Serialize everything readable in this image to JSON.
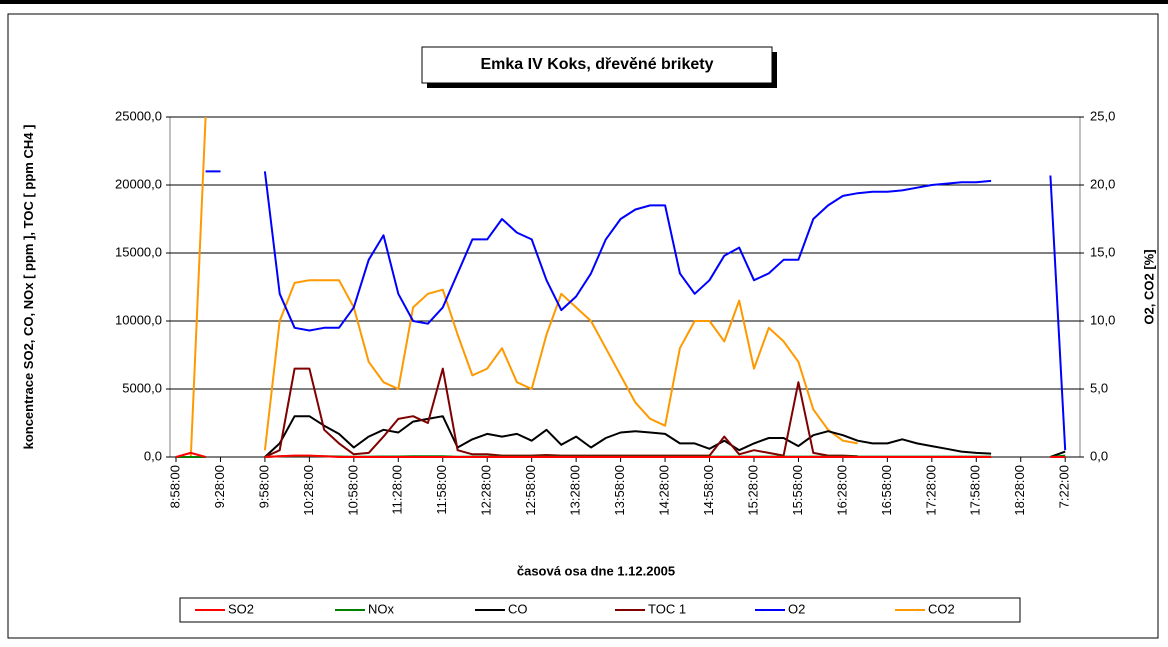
{
  "chart_data": {
    "type": "line",
    "title": "Emka IV Koks, dřevěné brikety",
    "x_label": "časová osa dne 1.12.2005",
    "y_label": "koncentrace SO2, CO, NOx [ ppm ], TOC [ ppm CH4 ]",
    "y2_label": "O2, CO2 [%]",
    "categories": [
      "8:58:00",
      null,
      null,
      "9:28:00",
      null,
      null,
      "9:58:00",
      null,
      null,
      "10:28:00",
      null,
      null,
      "10:58:00",
      null,
      null,
      "11:28:00",
      null,
      null,
      "11:58:00",
      null,
      null,
      "12:28:00",
      null,
      null,
      "12:58:00",
      null,
      null,
      "13:28:00",
      null,
      null,
      "13:58:00",
      null,
      null,
      "14:28:00",
      null,
      null,
      "14:58:00",
      null,
      null,
      "15:28:00",
      null,
      null,
      "15:58:00",
      null,
      null,
      "16:28:00",
      null,
      null,
      "16:58:00",
      null,
      null,
      "17:28:00",
      null,
      null,
      "17:58:00",
      null,
      null,
      "18:28:00",
      null,
      null,
      "7:22:00"
    ],
    "ylim": [
      0,
      25000
    ],
    "yticks": [
      {
        "value": 0,
        "label": "0,0"
      },
      {
        "value": 5000,
        "label": "5000,0"
      },
      {
        "value": 10000,
        "label": "10000,0"
      },
      {
        "value": 15000,
        "label": "15000,0"
      },
      {
        "value": 20000,
        "label": "20000,0"
      },
      {
        "value": 25000,
        "label": "25000,0"
      }
    ],
    "y2lim": [
      0,
      25
    ],
    "y2ticks": [
      {
        "value": 0,
        "label": "0,0"
      },
      {
        "value": 5,
        "label": "5,0"
      },
      {
        "value": 10,
        "label": "10,0"
      },
      {
        "value": 15,
        "label": "15,0"
      },
      {
        "value": 20,
        "label": "20,0"
      },
      {
        "value": 25,
        "label": "25,0"
      }
    ],
    "grid": true,
    "legend": "bottom",
    "series": [
      {
        "name": "SO2",
        "color": "#ff0000",
        "values": [
          0,
          300,
          0,
          null,
          null,
          null,
          0,
          50,
          100,
          100,
          50,
          0,
          0,
          0,
          0,
          0,
          0,
          0,
          0,
          0,
          0,
          0,
          0,
          0,
          0,
          0,
          0,
          0,
          0,
          0,
          0,
          0,
          0,
          0,
          0,
          0,
          0,
          0,
          0,
          0,
          0,
          0,
          0,
          0,
          0,
          0,
          0,
          0,
          0,
          0,
          0,
          0,
          0,
          0,
          0,
          0,
          null,
          null,
          null,
          0,
          0
        ]
      },
      {
        "name": "NOx",
        "color": "#008000",
        "values": [
          0,
          0,
          0,
          null,
          null,
          null,
          0,
          50,
          80,
          80,
          60,
          40,
          20,
          30,
          40,
          40,
          50,
          50,
          50,
          20,
          30,
          30,
          30,
          30,
          30,
          30,
          30,
          30,
          30,
          30,
          30,
          30,
          30,
          30,
          30,
          30,
          30,
          30,
          30,
          30,
          30,
          30,
          30,
          30,
          30,
          30,
          30,
          30,
          30,
          30,
          30,
          30,
          30,
          30,
          30,
          30,
          null,
          null,
          null,
          0,
          100
        ]
      },
      {
        "name": "CO",
        "color": "#000000",
        "values": [
          0,
          0,
          0,
          null,
          null,
          null,
          0,
          1000,
          3000,
          3000,
          2300,
          1700,
          700,
          1500,
          2000,
          1800,
          2600,
          2800,
          3000,
          700,
          1300,
          1700,
          1500,
          1700,
          1200,
          2000,
          900,
          1500,
          700,
          1400,
          1800,
          1900,
          1800,
          1700,
          1000,
          1000,
          600,
          1200,
          500,
          1000,
          1400,
          1400,
          800,
          1600,
          1900,
          1600,
          1200,
          1000,
          1000,
          1300,
          1000,
          800,
          600,
          400,
          300,
          250,
          null,
          null,
          null,
          0,
          400
        ]
      },
      {
        "name": "TOC 1",
        "color": "#800000",
        "values": [
          0,
          0,
          0,
          null,
          null,
          null,
          0,
          500,
          6500,
          6500,
          2000,
          1000,
          200,
          300,
          1500,
          2800,
          3000,
          2500,
          6500,
          500,
          200,
          200,
          100,
          100,
          100,
          150,
          100,
          100,
          100,
          100,
          100,
          100,
          100,
          100,
          100,
          100,
          100,
          1500,
          200,
          500,
          300,
          100,
          5500,
          300,
          100,
          100,
          50,
          null,
          null,
          null,
          null,
          null,
          null,
          null,
          null,
          null,
          null,
          null,
          null,
          null,
          null
        ]
      },
      {
        "name": "O2",
        "color": "#0000ff",
        "axis": "y2",
        "values": [
          null,
          null,
          21,
          21,
          null,
          null,
          21,
          12,
          9.5,
          9.3,
          9.5,
          9.5,
          11,
          14.5,
          16.3,
          12,
          10,
          9.8,
          11,
          13.5,
          16,
          16,
          17.5,
          16.5,
          16,
          13,
          10.8,
          11.8,
          13.5,
          16,
          17.5,
          18.2,
          18.5,
          18.5,
          13.5,
          12,
          13,
          14.8,
          15.4,
          13,
          13.5,
          14.5,
          14.5,
          17.5,
          18.5,
          19.2,
          19.4,
          19.5,
          19.5,
          19.6,
          19.8,
          20,
          20.1,
          20.2,
          20.2,
          20.3,
          null,
          null,
          null,
          20.7,
          0.5
        ]
      },
      {
        "name": "CO2",
        "color": "#ff9900",
        "axis": "y2",
        "values": [
          0,
          0,
          25,
          null,
          null,
          null,
          0.5,
          10,
          12.8,
          13,
          13,
          13,
          11,
          7,
          5.5,
          5,
          11,
          12,
          12.3,
          9,
          6,
          6.5,
          8,
          5.5,
          5,
          9,
          12,
          11,
          10,
          8,
          6,
          4,
          2.8,
          2.3,
          8,
          10,
          10,
          8.5,
          11.5,
          6.5,
          9.5,
          8.5,
          7,
          3.5,
          2,
          1.2,
          1,
          null,
          null,
          null,
          null,
          null,
          null,
          null,
          null,
          null,
          null,
          null,
          null,
          null,
          null
        ]
      }
    ]
  }
}
